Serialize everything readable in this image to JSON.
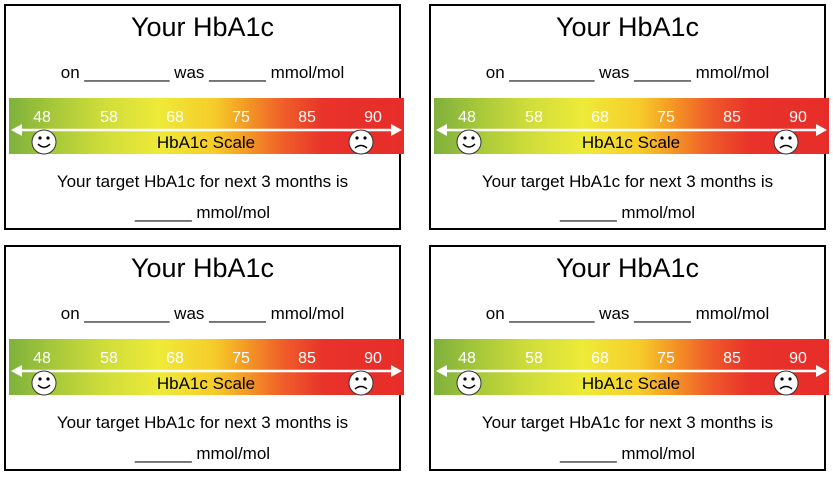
{
  "cards": [
    {
      "title": "Your HbA1c",
      "line1": "on _________ was ______ mmol/mol",
      "ticks": [
        "48",
        "58",
        "68",
        "75",
        "85",
        "90"
      ],
      "scale_label": "HbA1c Scale",
      "line3": "Your target HbA1c for next 3 months is",
      "line4": "______ mmol/mol"
    },
    {
      "title": "Your HbA1c",
      "line1": "on _________ was ______ mmol/mol",
      "ticks": [
        "48",
        "58",
        "68",
        "75",
        "85",
        "90"
      ],
      "scale_label": "HbA1c Scale",
      "line3": "Your target HbA1c for next 3 months is",
      "line4": "______ mmol/mol"
    },
    {
      "title": "Your HbA1c",
      "line1": "on _________ was ______ mmol/mol",
      "ticks": [
        "48",
        "58",
        "68",
        "75",
        "85",
        "90"
      ],
      "scale_label": "HbA1c Scale",
      "line3": "Your target HbA1c for next 3 months is",
      "line4": "______ mmol/mol"
    },
    {
      "title": "Your HbA1c",
      "line1": "on _________ was ______ mmol/mol",
      "ticks": [
        "48",
        "58",
        "68",
        "75",
        "85",
        "90"
      ],
      "scale_label": "HbA1c Scale",
      "line3": "Your target HbA1c for next 3 months is",
      "line4": "______ mmol/mol"
    }
  ],
  "colors": {
    "scale_low": "#7fb13c",
    "scale_mid": "#eeea38",
    "scale_high": "#e72d29",
    "tick_text": "#ffffff"
  },
  "icons": {
    "low_end": "happy-face-icon",
    "high_end": "sad-face-icon"
  }
}
